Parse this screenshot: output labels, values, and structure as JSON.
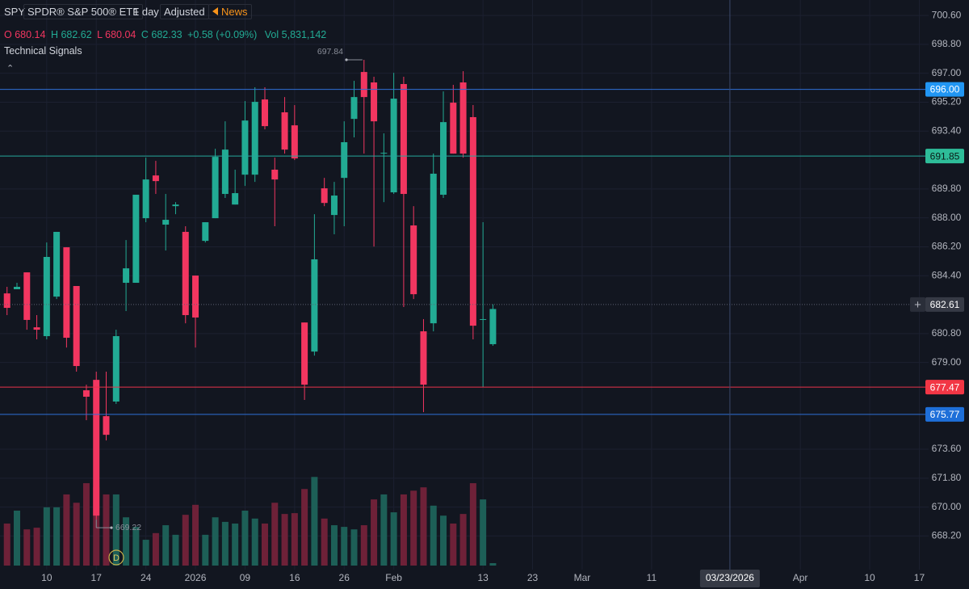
{
  "header": {
    "symbol": "SPY",
    "name": "SPDR® S&P 500® ETF",
    "interval": "1 day",
    "adjustment": "Adjusted",
    "news": "News",
    "o_label": "O",
    "h_label": "H",
    "l_label": "L",
    "c_label": "C",
    "change": "+0.58 (+0.09%)",
    "vol_label": "Vol",
    "volume": "5,831,142",
    "indicator": "Technical Signals"
  },
  "chart_data": {
    "type": "candlestick",
    "open": [
      683.3,
      683.56,
      684.61,
      681.19,
      680.64,
      683.1,
      686.17,
      683.76,
      677.27,
      677.92,
      675.66,
      676.57,
      683.96,
      683.96,
      687.98,
      690.64,
      687.58,
      688.73,
      687.13,
      684.41,
      686.57,
      687.98,
      689.49,
      688.83,
      690.69,
      690.69,
      695.37,
      691.0,
      694.57,
      693.76,
      681.49,
      679.68,
      689.84,
      688.18,
      690.49,
      694.16,
      697.08,
      696.43,
      692.0,
      689.59,
      696.33,
      687.53,
      680.94,
      681.44,
      689.44,
      695.17,
      696.43,
      694.27,
      681.65,
      680.14
    ],
    "high": [
      683.71,
      683.96,
      684.61,
      681.95,
      686.47,
      687.13,
      686.17,
      683.76,
      677.62,
      678.43,
      678.43,
      681.04,
      686.62,
      689.44,
      691.75,
      691.55,
      689.49,
      688.98,
      687.48,
      684.41,
      687.73,
      692.3,
      694.01,
      691.0,
      695.27,
      696.13,
      696.13,
      691.75,
      695.52,
      695.02,
      681.49,
      688.23,
      690.49,
      690.24,
      694.01,
      696.53,
      697.84,
      696.78,
      693.26,
      697.03,
      696.78,
      688.73,
      681.7,
      692.0,
      695.87,
      696.28,
      697.13,
      695.02,
      687.73,
      682.62
    ],
    "low": [
      681.95,
      683.56,
      681.04,
      680.44,
      680.44,
      682.95,
      679.93,
      678.43,
      675.41,
      669.22,
      674.15,
      676.42,
      682.2,
      683.96,
      687.73,
      689.49,
      685.97,
      688.23,
      681.44,
      679.93,
      686.47,
      687.98,
      689.24,
      688.83,
      689.99,
      690.24,
      693.51,
      687.48,
      692.0,
      691.6,
      676.67,
      679.43,
      688.73,
      686.98,
      687.48,
      693.01,
      692.0,
      686.22,
      688.98,
      689.49,
      682.45,
      682.95,
      675.91,
      680.94,
      689.24,
      692.0,
      691.75,
      680.44,
      677.47,
      680.04
    ],
    "close": [
      682.4,
      683.71,
      681.65,
      681.04,
      685.57,
      687.13,
      680.54,
      678.78,
      676.87,
      669.47,
      674.5,
      680.64,
      684.86,
      689.44,
      690.39,
      690.29,
      687.88,
      688.83,
      681.95,
      681.8,
      687.73,
      691.8,
      692.25,
      689.54,
      694.06,
      695.22,
      693.71,
      690.39,
      692.25,
      691.7,
      677.62,
      685.42,
      688.93,
      689.39,
      692.71,
      695.52,
      695.52,
      694.01,
      692.05,
      695.42,
      689.49,
      683.25,
      677.62,
      690.75,
      693.96,
      692.0,
      692.0,
      681.29,
      681.7,
      682.33
    ],
    "volume": [
      101,
      132,
      87,
      91,
      140,
      140,
      171,
      151,
      198,
      188,
      171,
      171,
      116,
      93,
      62,
      78,
      97,
      74,
      122,
      146,
      74,
      116,
      105,
      101,
      132,
      113,
      101,
      151,
      124,
      126,
      184,
      213,
      113,
      97,
      93,
      87,
      97,
      159,
      171,
      128,
      171,
      180,
      188,
      144,
      120,
      101,
      124,
      198,
      159,
      5.83
    ],
    "volume_lim": [
      0,
      233
    ],
    "up_color": "#22ab94",
    "down_color": "#f23660",
    "volume_up_color": "#1d5f57",
    "volume_down_color": "#6e2138",
    "xlim": [
      -0.71,
      92.94
    ],
    "xticks": [
      {
        "value": 4,
        "label": "10"
      },
      {
        "value": 9,
        "label": "17"
      },
      {
        "value": 14,
        "label": "24"
      },
      {
        "value": 19,
        "label": "2026"
      },
      {
        "value": 24,
        "label": "09"
      },
      {
        "value": 29,
        "label": "16"
      },
      {
        "value": 34,
        "label": "26"
      },
      {
        "value": 39,
        "label": "Feb"
      },
      {
        "value": 48,
        "label": "13"
      },
      {
        "value": 53,
        "label": "23"
      },
      {
        "value": 58,
        "label": "Mar"
      },
      {
        "value": 65,
        "label": "11"
      },
      {
        "value": 80,
        "label": "Apr"
      },
      {
        "value": 87,
        "label": "10"
      },
      {
        "value": 92,
        "label": "17"
      }
    ],
    "ylim": [
      666.11,
      701.56
    ],
    "yticks": [
      {
        "value": 700.6,
        "label": "700.60"
      },
      {
        "value": 698.8,
        "label": "698.80"
      },
      {
        "value": 697,
        "label": "697.00"
      },
      {
        "value": 695.2,
        "label": "695.20"
      },
      {
        "value": 693.4,
        "label": "693.40"
      },
      {
        "value": 689.8,
        "label": "689.80"
      },
      {
        "value": 688,
        "label": "688.00"
      },
      {
        "value": 686.2,
        "label": "686.20"
      },
      {
        "value": 684.4,
        "label": "684.40"
      },
      {
        "value": 680.8,
        "label": "680.80"
      },
      {
        "value": 679,
        "label": "679.00"
      },
      {
        "value": 673.6,
        "label": "673.60"
      },
      {
        "value": 671.8,
        "label": "671.80"
      },
      {
        "value": 670,
        "label": "670.00"
      },
      {
        "value": 668.2,
        "label": "668.20"
      }
    ],
    "grid": true,
    "price_lines": [
      {
        "value": 696,
        "label": "696.00",
        "color": "#2f6fd6",
        "label_color": "#2196f3",
        "text_color": "#ffffff"
      },
      {
        "value": 691.85,
        "label": "691.85",
        "color": "#26a69a",
        "label_color": "#2ebd99",
        "text_color": "#0b1a17"
      },
      {
        "value": 677.47,
        "label": "677.47",
        "color": "#e8334a",
        "label_color": "#f23645",
        "text_color": "#ffffff"
      },
      {
        "value": 675.77,
        "label": "675.77",
        "color": "#2f6fd6",
        "label_color": "#1e6fd9",
        "text_color": "#ffffff"
      }
    ],
    "last_price": 682.61,
    "crosshair": {
      "x": 72.9,
      "label": "03/23/2026"
    },
    "dividend_marker": "D"
  }
}
